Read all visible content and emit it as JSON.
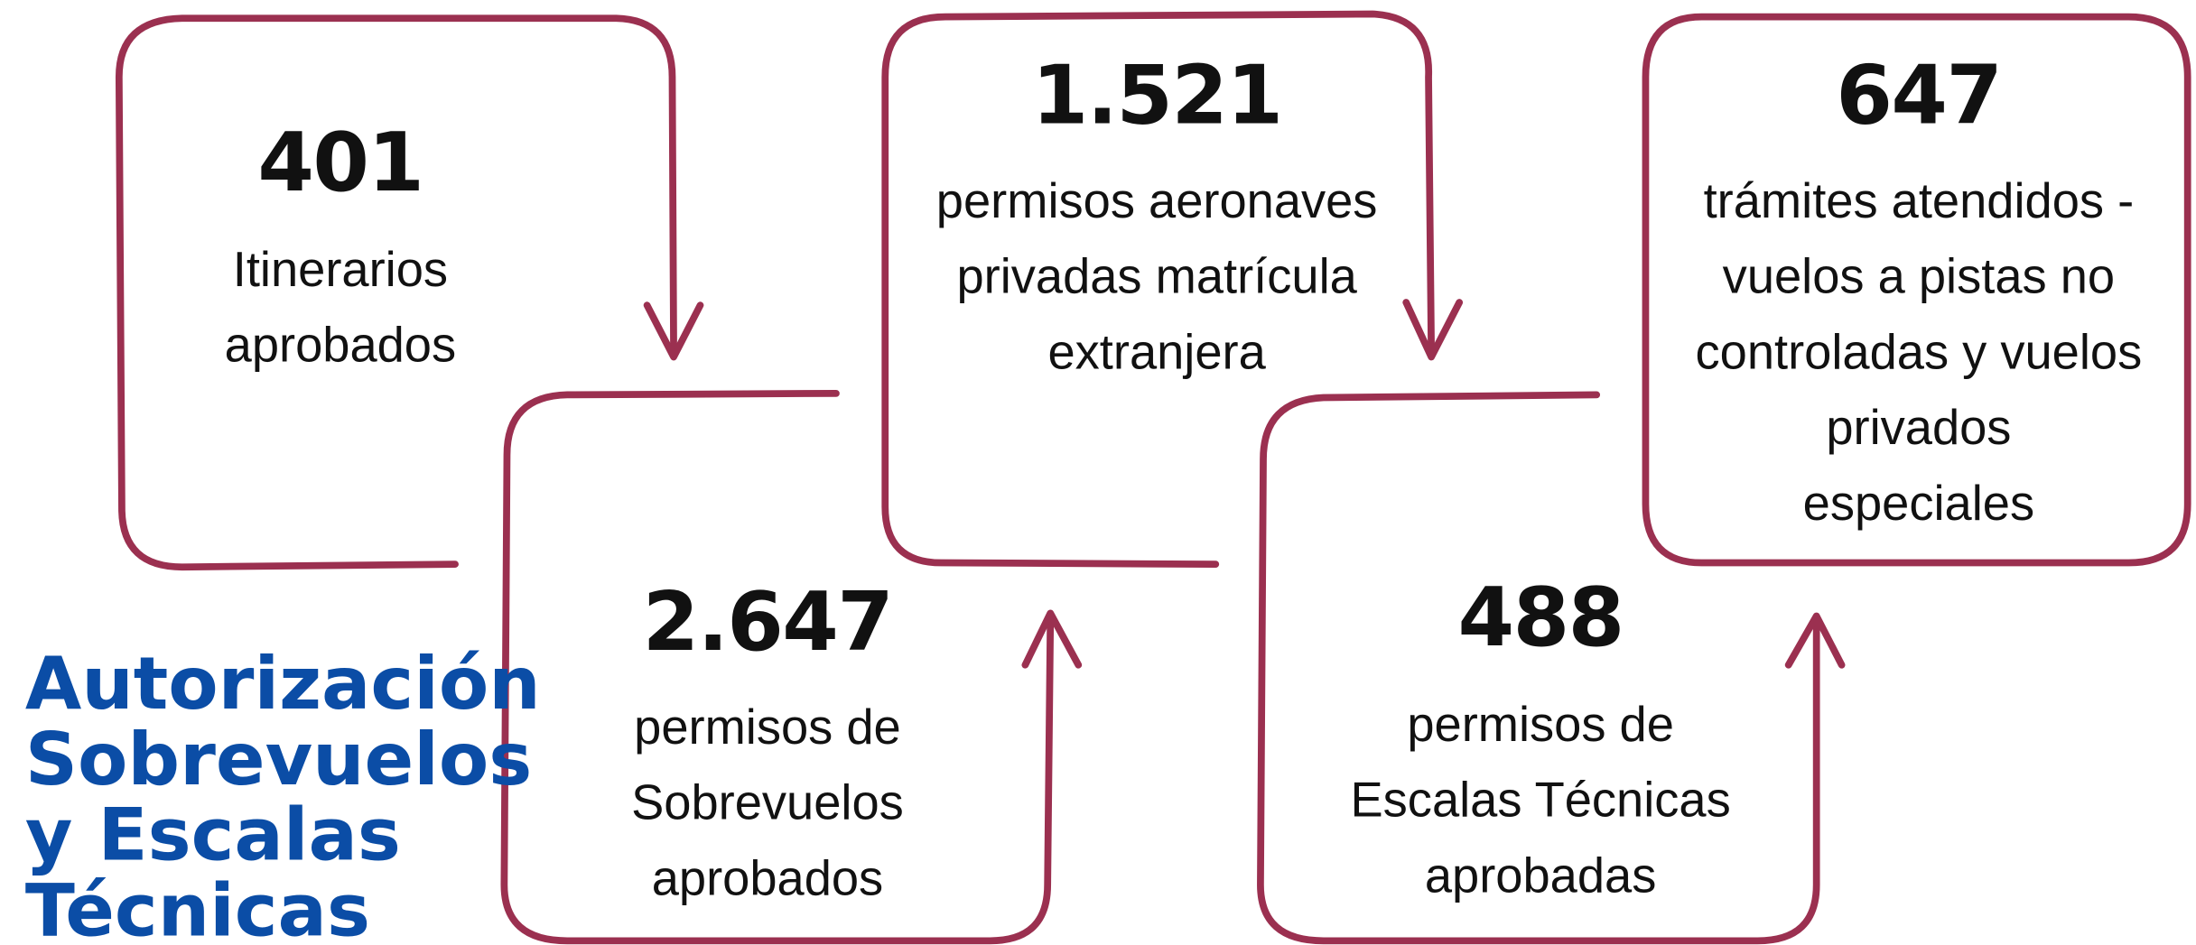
{
  "title": [
    "Autorización",
    "Sobrevuelos",
    "y Escalas",
    "Técnicas"
  ],
  "cards": [
    {
      "value": "401",
      "lines": [
        "Itinerarios",
        "aprobados"
      ]
    },
    {
      "value": "2.647",
      "lines": [
        "permisos de",
        "Sobrevuelos",
        "aprobados"
      ]
    },
    {
      "value": "1.521",
      "lines": [
        "permisos aeronaves",
        "privadas matrícula",
        "extranjera"
      ]
    },
    {
      "value": "488",
      "lines": [
        "permisos de",
        "Escalas Técnicas",
        "aprobadas"
      ]
    },
    {
      "value": "647",
      "lines": [
        "trámites atendidos -",
        "vuelos a pistas no",
        "controladas y vuelos",
        "privados",
        "especiales"
      ]
    }
  ]
}
